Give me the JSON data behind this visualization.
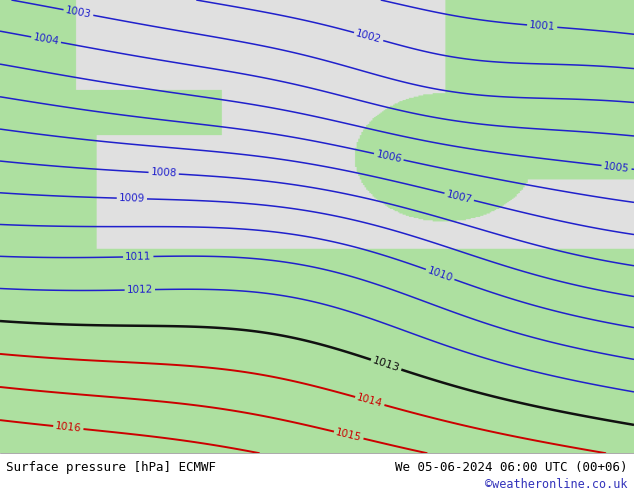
{
  "title_left": "Surface pressure [hPa] ECMWF",
  "title_right": "We 05-06-2024 06:00 UTC (00+06)",
  "watermark": "©weatheronline.co.uk",
  "land_color_green": [
    0.68,
    0.88,
    0.63
  ],
  "land_color_gray": [
    0.82,
    0.82,
    0.82
  ],
  "sea_color": [
    0.88,
    0.88,
    0.88
  ],
  "blue_contour_color": "#2020cc",
  "black_contour_color": "#111111",
  "red_contour_color": "#cc0000",
  "footer_bg": "#cce8cc",
  "footer_text_color": "#000000",
  "watermark_color": "#3333bb",
  "font_size_footer": 9,
  "figsize": [
    6.34,
    4.9
  ],
  "dpi": 100
}
